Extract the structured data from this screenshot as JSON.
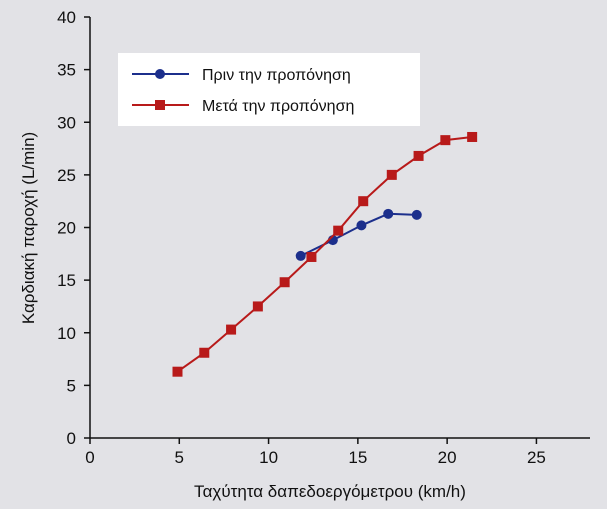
{
  "chart_data": {
    "type": "line",
    "title": "",
    "xlabel": "Ταχύτητα δαπεδοεργόμετρου (km/h)",
    "ylabel": "Καρδιακή παροχή (L/min)",
    "xlim": [
      0,
      28
    ],
    "ylim": [
      0,
      40
    ],
    "xticks": [
      0,
      5,
      10,
      15,
      20,
      25
    ],
    "yticks": [
      0,
      5,
      10,
      15,
      20,
      25,
      30,
      35,
      40
    ],
    "grid": false,
    "legend_position": "top-left",
    "series": [
      {
        "name": "Πριν την προπόνηση",
        "color": "#1c2f8c",
        "marker": "circle",
        "x": [
          11.8,
          13.6,
          15.2,
          16.7,
          18.3
        ],
        "y": [
          17.3,
          18.8,
          20.2,
          21.3,
          21.2
        ]
      },
      {
        "name": "Μετά την προπόνηση",
        "color": "#b81a1a",
        "marker": "square",
        "x": [
          4.9,
          6.4,
          7.9,
          9.4,
          10.9,
          12.4,
          13.9,
          15.3,
          16.9,
          18.4,
          19.9,
          21.4
        ],
        "y": [
          6.3,
          8.1,
          10.3,
          12.5,
          14.8,
          17.2,
          19.7,
          22.5,
          25.0,
          26.8,
          28.3,
          28.6
        ]
      }
    ]
  }
}
